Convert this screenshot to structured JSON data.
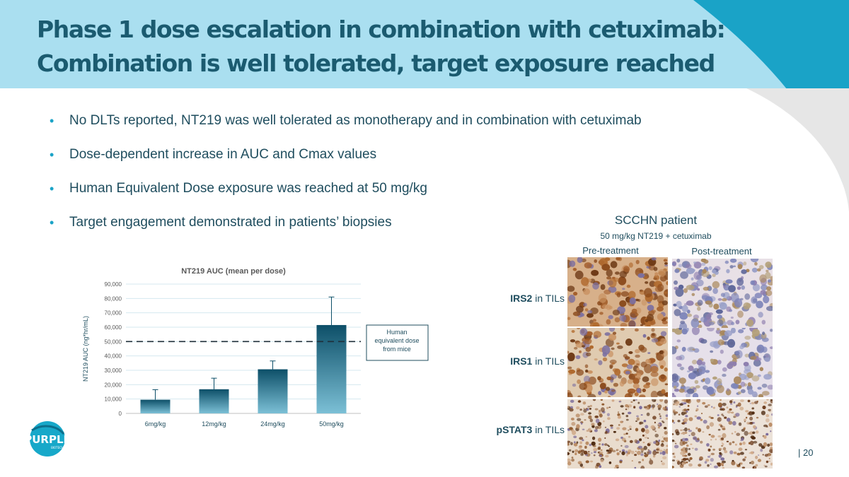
{
  "title": {
    "line1": "Phase 1 dose escalation in combination with cetuximab:",
    "line2": "Combination is well tolerated, target exposure reached"
  },
  "bullets": [
    "No DLTs reported, NT219 was well tolerated as monotherapy and in combination with cetuximab",
    "Dose-dependent increase in AUC and Cmax values",
    "Human Equivalent Dose exposure was reached at 50 mg/kg",
    "Target engagement demonstrated in patients’ biopsies"
  ],
  "colors": {
    "title": "#1b5b70",
    "text": "#1f4d5e",
    "header_band": "#aadff0",
    "header_accent": "#1aa3c7",
    "bar_top": "#0d4f68",
    "bar_bottom": "#7cc0d6",
    "gridline": "#d5e8ef"
  },
  "chart_data": {
    "type": "bar",
    "title": "NT219 AUC (mean per dose)",
    "ylabel": "NT219 AUC (ng*hr/mL)",
    "xlabel": "",
    "categories": [
      "6mg/kg",
      "12mg/kg",
      "24mg/kg",
      "50mg/kg"
    ],
    "values": [
      9500,
      16800,
      30700,
      61500
    ],
    "error_upper": [
      16500,
      24500,
      36500,
      81000
    ],
    "ylim": [
      0,
      90000
    ],
    "yticks": [
      0,
      10000,
      20000,
      30000,
      40000,
      50000,
      60000,
      70000,
      80000,
      90000
    ],
    "ytick_labels": [
      "0",
      "10,000",
      "20,000",
      "30,000",
      "40,000",
      "50,000",
      "60,000",
      "70,000",
      "80,000",
      "90,000"
    ],
    "grid": true,
    "reference_line": {
      "value": 50000,
      "style": "dashed"
    },
    "annotation_lines": [
      "Human",
      "equivalent dose",
      "from mice"
    ]
  },
  "biopsy_panel": {
    "title": "SCCHN patient",
    "subtitle": "50 mg/kg NT219 + cetuximab",
    "columns": [
      "Pre-treatment",
      "Post-treatment"
    ],
    "rows": [
      {
        "marker": "IRS2",
        "suffix": " in TILs"
      },
      {
        "marker": "IRS1",
        "suffix": " in TILs"
      },
      {
        "marker": "pSTAT3",
        "suffix": " in TILs"
      }
    ]
  },
  "logo": {
    "text": "PURPLE",
    "subtext": "BIOTECH"
  },
  "page_number": "| 20"
}
